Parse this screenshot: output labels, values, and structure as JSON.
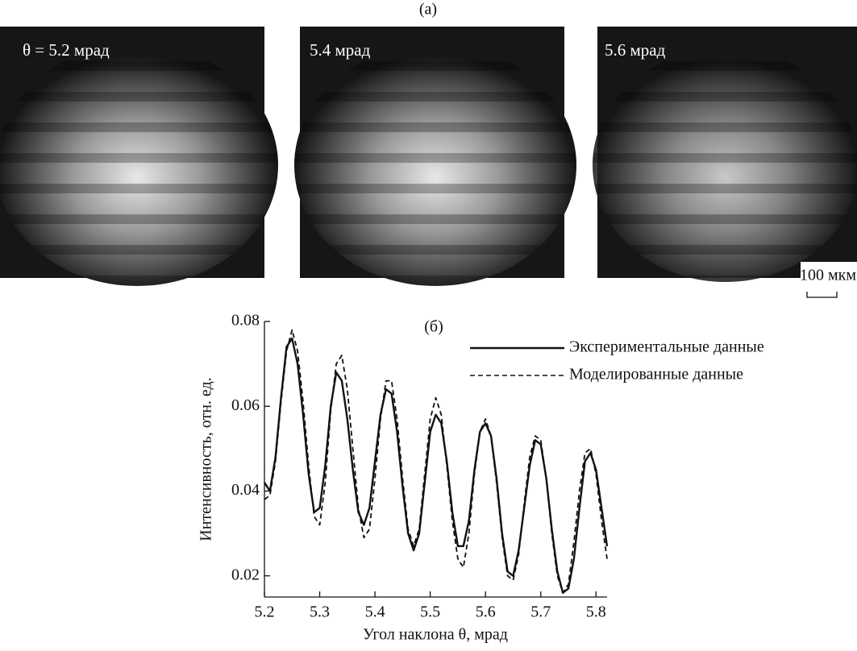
{
  "panel_a": {
    "label": "(a)",
    "captions": [
      "θ = 5.2 мрад",
      "5.4 мрад",
      "5.6 мрад"
    ],
    "scale_bar": "100 мкм"
  },
  "chart_data": {
    "type": "line",
    "label": "(б)",
    "x_label": "Угол наклона θ, мрад",
    "y_label": "Интенсивность, отн. ед.",
    "xlim": [
      5.2,
      5.82
    ],
    "ylim": [
      0.015,
      0.08
    ],
    "xticks": [
      5.2,
      5.3,
      5.4,
      5.5,
      5.6,
      5.7,
      5.8
    ],
    "yticks": [
      0.02,
      0.04,
      0.06,
      0.08
    ],
    "x": [
      5.2,
      5.21,
      5.22,
      5.23,
      5.24,
      5.25,
      5.26,
      5.27,
      5.28,
      5.29,
      5.3,
      5.31,
      5.32,
      5.33,
      5.34,
      5.35,
      5.36,
      5.37,
      5.38,
      5.39,
      5.4,
      5.41,
      5.42,
      5.43,
      5.44,
      5.45,
      5.46,
      5.47,
      5.48,
      5.49,
      5.5,
      5.51,
      5.52,
      5.53,
      5.54,
      5.55,
      5.56,
      5.57,
      5.58,
      5.59,
      5.6,
      5.61,
      5.62,
      5.63,
      5.64,
      5.65,
      5.66,
      5.67,
      5.68,
      5.69,
      5.7,
      5.71,
      5.72,
      5.73,
      5.74,
      5.75,
      5.76,
      5.77,
      5.78,
      5.79,
      5.8,
      5.81,
      5.82
    ],
    "series": [
      {
        "name": "Экспериментальные данные",
        "color": "#111111",
        "dash": false,
        "values": [
          0.042,
          0.04,
          0.048,
          0.062,
          0.074,
          0.076,
          0.07,
          0.058,
          0.044,
          0.035,
          0.036,
          0.046,
          0.06,
          0.068,
          0.066,
          0.057,
          0.045,
          0.035,
          0.032,
          0.036,
          0.047,
          0.058,
          0.064,
          0.063,
          0.054,
          0.041,
          0.03,
          0.026,
          0.03,
          0.042,
          0.054,
          0.058,
          0.056,
          0.047,
          0.035,
          0.027,
          0.027,
          0.033,
          0.045,
          0.054,
          0.056,
          0.053,
          0.043,
          0.03,
          0.021,
          0.02,
          0.026,
          0.036,
          0.046,
          0.052,
          0.051,
          0.043,
          0.031,
          0.021,
          0.016,
          0.017,
          0.024,
          0.036,
          0.047,
          0.049,
          0.045,
          0.036,
          0.027
        ]
      },
      {
        "name": "Моделированные данные",
        "color": "#111111",
        "dash": true,
        "values": [
          0.038,
          0.039,
          0.047,
          0.061,
          0.073,
          0.078,
          0.073,
          0.061,
          0.046,
          0.034,
          0.032,
          0.042,
          0.059,
          0.07,
          0.072,
          0.064,
          0.05,
          0.036,
          0.029,
          0.031,
          0.043,
          0.057,
          0.066,
          0.066,
          0.057,
          0.043,
          0.031,
          0.027,
          0.031,
          0.044,
          0.057,
          0.062,
          0.058,
          0.046,
          0.033,
          0.024,
          0.022,
          0.03,
          0.044,
          0.054,
          0.057,
          0.053,
          0.042,
          0.029,
          0.02,
          0.019,
          0.025,
          0.037,
          0.048,
          0.053,
          0.052,
          0.043,
          0.03,
          0.02,
          0.016,
          0.018,
          0.028,
          0.04,
          0.049,
          0.05,
          0.044,
          0.033,
          0.024
        ]
      }
    ]
  }
}
